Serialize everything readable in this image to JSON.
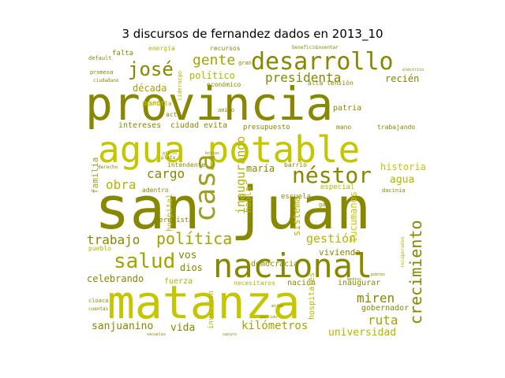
{
  "chart_data": {
    "type": "wordcloud",
    "title": "3 discursos de fernandez dados en 2013_10",
    "colors": [
      "#878700",
      "#a3a300",
      "#b4b400",
      "#c6c600",
      "#cccc33",
      "#9e9e1f",
      "#bdbd4a"
    ],
    "words": [
      {
        "text": "provincia",
        "weight": 100,
        "color": "#878700"
      },
      {
        "text": "san",
        "weight": 96,
        "color": "#878700"
      },
      {
        "text": "juan",
        "weight": 96,
        "color": "#878700"
      },
      {
        "text": "matanza",
        "weight": 88,
        "color": "#c6c600"
      },
      {
        "text": "agua potable",
        "weight": 78,
        "color": "#c6c600"
      },
      {
        "text": "nacional",
        "weight": 62,
        "color": "#878700"
      },
      {
        "text": "casa",
        "weight": 52,
        "color": "#9e9e1f"
      },
      {
        "text": "desarrollo",
        "weight": 50,
        "color": "#878700"
      },
      {
        "text": "néstor",
        "weight": 42,
        "color": "#878700"
      },
      {
        "text": "salud",
        "weight": 40,
        "color": "#a3a300"
      },
      {
        "text": "josé",
        "weight": 36,
        "color": "#878700"
      },
      {
        "text": "crecimiento",
        "weight": 32,
        "color": "#878700"
      },
      {
        "text": "política",
        "weight": 30,
        "color": "#a3a300"
      },
      {
        "text": "gente",
        "weight": 28,
        "color": "#a3a300"
      },
      {
        "text": "presidenta",
        "weight": 26,
        "color": "#878700"
      },
      {
        "text": "cargo",
        "weight": 26,
        "color": "#878700"
      },
      {
        "text": "obra",
        "weight": 24,
        "color": "#b4b400"
      },
      {
        "text": "trabajo",
        "weight": 24,
        "color": "#878700"
      },
      {
        "text": "ruta",
        "weight": 24,
        "color": "#a3a300"
      },
      {
        "text": "miren",
        "weight": 23,
        "color": "#878700"
      },
      {
        "text": "gestión",
        "weight": 22,
        "color": "#b4b400"
      },
      {
        "text": "inaugurando",
        "weight": 22,
        "color": "#b4b400"
      },
      {
        "text": "kilómetros",
        "weight": 20,
        "color": "#a3a300"
      },
      {
        "text": "universidad",
        "weight": 20,
        "color": "#b4b400"
      },
      {
        "text": "sanjuanino",
        "weight": 19,
        "color": "#878700"
      },
      {
        "text": "vida",
        "weight": 19,
        "color": "#878700"
      },
      {
        "text": "agua",
        "weight": 18,
        "color": "#b4b400"
      },
      {
        "text": "historia",
        "weight": 18,
        "color": "#c6c600"
      },
      {
        "text": "vos",
        "weight": 18,
        "color": "#878700"
      },
      {
        "text": "dios",
        "weight": 18,
        "color": "#878700"
      },
      {
        "text": "celebrando",
        "weight": 17,
        "color": "#878700"
      },
      {
        "text": "tucumanos",
        "weight": 17,
        "color": "#c6c600"
      },
      {
        "text": "sistema",
        "weight": 17,
        "color": "#b4b400"
      },
      {
        "text": "maría",
        "weight": 16,
        "color": "#878700"
      },
      {
        "text": "recién",
        "weight": 16,
        "color": "#878700"
      },
      {
        "text": "familia",
        "weight": 16,
        "color": "#9e9e1f"
      },
      {
        "text": "década",
        "weight": 16,
        "color": "#a3a300"
      },
      {
        "text": "político",
        "weight": 15,
        "color": "#b4b400"
      },
      {
        "text": "vivienda",
        "weight": 14,
        "color": "#878700"
      },
      {
        "text": "habla",
        "weight": 14,
        "color": "#b4b400"
      },
      {
        "text": "gobernador",
        "weight": 13,
        "color": "#878700"
      },
      {
        "text": "democracia",
        "weight": 12,
        "color": "#878700"
      },
      {
        "text": "fuerza",
        "weight": 12,
        "color": "#b4b400"
      },
      {
        "text": "nación",
        "weight": 12,
        "color": "#878700"
      },
      {
        "text": "hospital",
        "weight": 12,
        "color": "#b4b400"
      },
      {
        "text": "inaugurar",
        "weight": 11,
        "color": "#878700"
      },
      {
        "text": "hospitales",
        "weight": 11,
        "color": "#b4b400"
      },
      {
        "text": "inversión",
        "weight": 11,
        "color": "#b4b400"
      },
      {
        "text": "intereses",
        "weight": 11,
        "color": "#878700"
      },
      {
        "text": "ciudad",
        "weight": 11,
        "color": "#878700"
      },
      {
        "text": "evita",
        "weight": 11,
        "color": "#878700"
      },
      {
        "text": "patria",
        "weight": 11,
        "color": "#878700"
      },
      {
        "text": "especial",
        "weight": 10,
        "color": "#b4b400"
      },
      {
        "text": "presupuesto",
        "weight": 10,
        "color": "#878700"
      },
      {
        "text": "peronista",
        "weight": 10,
        "color": "#878700"
      },
      {
        "text": "perón",
        "weight": 10,
        "color": "#c6c600"
      },
      {
        "text": "necesitaros",
        "weight": 10,
        "color": "#b4b400"
      },
      {
        "text": "escuela",
        "weight": 10,
        "color": "#878700"
      },
      {
        "text": "trabajando",
        "weight": 9,
        "color": "#878700"
      },
      {
        "text": "intendente",
        "weight": 9,
        "color": "#878700"
      },
      {
        "text": "económico",
        "weight": 9,
        "color": "#878700"
      },
      {
        "text": "energía",
        "weight": 9,
        "color": "#b4b400"
      },
      {
        "text": "falta",
        "weight": 9,
        "color": "#878700"
      },
      {
        "text": "mano",
        "weight": 9,
        "color": "#878700"
      },
      {
        "text": "barrio",
        "weight": 8,
        "color": "#878700"
      },
      {
        "text": "alta tensión",
        "weight": 8,
        "color": "#878700"
      },
      {
        "text": "camilla",
        "weight": 8,
        "color": "#b4b400"
      },
      {
        "text": "recursos",
        "weight": 8,
        "color": "#878700"
      },
      {
        "text": "adentro",
        "weight": 8,
        "color": "#878700"
      },
      {
        "text": "acto",
        "weight": 8,
        "color": "#878700"
      },
      {
        "text": "amigo",
        "weight": 7,
        "color": "#878700"
      },
      {
        "text": "gas",
        "weight": 7,
        "color": "#878700"
      },
      {
        "text": "gran",
        "weight": 7,
        "color": "#878700"
      },
      {
        "text": "pueblo",
        "weight": 7,
        "color": "#b4b400"
      },
      {
        "text": "promesa",
        "weight": 7,
        "color": "#878700"
      },
      {
        "text": "default",
        "weight": 7,
        "color": "#878700"
      },
      {
        "text": "cloaca",
        "weight": 7,
        "color": "#878700"
      },
      {
        "text": "dacinia",
        "weight": 6,
        "color": "#878700"
      },
      {
        "text": "derecho",
        "weight": 6,
        "color": "#878700"
      },
      {
        "text": "liderazgo",
        "weight": 6,
        "color": "#b4b400"
      },
      {
        "text": "ciudadano",
        "weight": 6,
        "color": "#878700"
      },
      {
        "text": "plata",
        "weight": 6,
        "color": "#878700"
      },
      {
        "text": "cuentas",
        "weight": 6,
        "color": "#878700"
      },
      {
        "text": "recuperamos",
        "weight": 6,
        "color": "#b4b400"
      },
      {
        "text": "beneficio",
        "weight": 6,
        "color": "#878700"
      },
      {
        "text": "inventar",
        "weight": 6,
        "color": "#878700"
      },
      {
        "text": "eléctrico",
        "weight": 5,
        "color": "#878700"
      },
      {
        "text": "secuelas",
        "weight": 5,
        "color": "#878700"
      },
      {
        "text": "sacuro",
        "weight": 5,
        "color": "#878700"
      },
      {
        "text": "pobres",
        "weight": 5,
        "color": "#878700"
      },
      {
        "text": "bolsas",
        "weight": 5,
        "color": "#878700"
      },
      {
        "text": "medios",
        "weight": 5,
        "color": "#878700"
      },
      {
        "text": "mitad",
        "weight": 5,
        "color": "#878700"
      },
      {
        "text": "partido",
        "weight": 5,
        "color": "#878700"
      },
      {
        "text": "piloto",
        "weight": 5,
        "color": "#878700"
      }
    ]
  }
}
